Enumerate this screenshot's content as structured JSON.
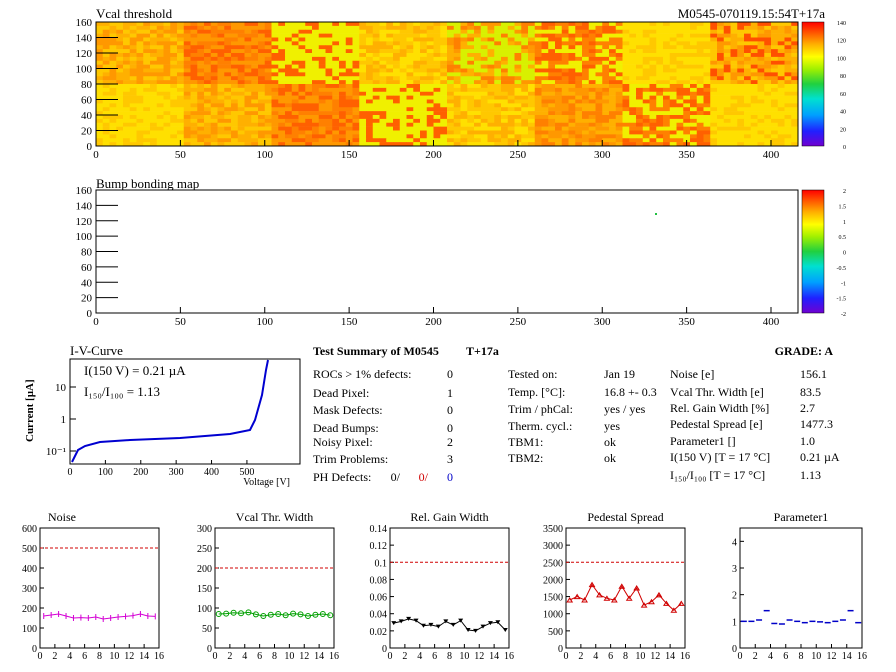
{
  "maps": [
    {
      "title": "Vcal threshold",
      "right_label": "M0545-070119.15:54T+17a",
      "x_ticks": [
        0,
        50,
        100,
        150,
        200,
        250,
        300,
        350,
        400
      ],
      "y_ticks": [
        0,
        20,
        40,
        60,
        80,
        100,
        120,
        140,
        160
      ],
      "xlim": [
        0,
        416
      ],
      "ylim": [
        0,
        160
      ],
      "palette_ticks": [
        0,
        20,
        40,
        60,
        80,
        100,
        120,
        140
      ],
      "palette_range": [
        0,
        140
      ]
    },
    {
      "title": "Bump bonding map",
      "x_ticks": [
        0,
        50,
        100,
        150,
        200,
        250,
        300,
        350,
        400
      ],
      "y_ticks": [
        0,
        20,
        40,
        60,
        80,
        100,
        120,
        140,
        160
      ],
      "xlim": [
        0,
        416
      ],
      "ylim": [
        0,
        160
      ],
      "palette_ticks": [
        -2,
        -1.5,
        -1,
        -0.5,
        0,
        0.5,
        1,
        1.5,
        2
      ],
      "palette_range": [
        -2,
        2
      ]
    }
  ],
  "iv_curve": {
    "title": "I-V-Curve",
    "ylabel": "Current [µA]",
    "xlabel": "Voltage [V]",
    "x_ticks": [
      0,
      100,
      200,
      300,
      400,
      500
    ],
    "y_ticks": [
      "10⁻¹",
      "1",
      "10"
    ],
    "annotation1": "I(150 V) = 0.21 µA",
    "annotation2": "I₁₅₀/I₁₀₀ =  1.13"
  },
  "summary": {
    "title": "Test Summary of M0545",
    "tag": "T+17a",
    "grade_label": "GRADE:  A",
    "col1": [
      {
        "label": "ROCs > 1% defects:",
        "value": "0"
      },
      {
        "label": "Dead Pixel:",
        "value": "1"
      },
      {
        "label": "Mask Defects:",
        "value": "0"
      },
      {
        "label": "Dead Bumps:",
        "value": "0"
      },
      {
        "label": "Noisy Pixel:",
        "value": "2"
      },
      {
        "label": "Trim Problems:",
        "value": "3"
      }
    ],
    "ph_defects": {
      "label": "PH Defects:",
      "v1": "0/",
      "v2": "0/",
      "v3": "0"
    },
    "col2": [
      {
        "label": "Tested on:",
        "value": "Jan 19"
      },
      {
        "label": "Temp. [°C]:",
        "value": "16.8 +- 0.3"
      },
      {
        "label": "Trim / phCal:",
        "value": "yes / yes"
      },
      {
        "label": "Therm. cycl.:",
        "value": "yes"
      },
      {
        "label": "TBM1:",
        "value": "ok"
      },
      {
        "label": "TBM2:",
        "value": "ok"
      }
    ],
    "col3": [
      {
        "label": "Noise [e]",
        "value": "156.1"
      },
      {
        "label": "Vcal Thr. Width [e]",
        "value": "83.5"
      },
      {
        "label": "Rel. Gain Width [%]",
        "value": "2.7"
      },
      {
        "label": "Pedestal Spread [e]",
        "value": "1477.3"
      },
      {
        "label": "Parameter1 []",
        "value": "1.0"
      },
      {
        "label": "I(150 V) [T = 17 °C]",
        "value": "0.21 µA"
      },
      {
        "label": "I₁₅₀/I₁₀₀  [T = 17 °C]",
        "value": "1.13"
      }
    ]
  },
  "chart_data": [
    {
      "type": "line",
      "title": "Noise",
      "x": [
        0,
        1,
        2,
        3,
        4,
        5,
        6,
        7,
        8,
        9,
        10,
        11,
        12,
        13,
        14,
        15
      ],
      "values": [
        160,
        165,
        170,
        160,
        150,
        152,
        150,
        155,
        145,
        150,
        155,
        158,
        162,
        170,
        160,
        158
      ],
      "ylim": [
        0,
        600
      ],
      "y_ticks": [
        0,
        100,
        200,
        300,
        400,
        500,
        600
      ],
      "x_ticks": [
        0,
        2,
        4,
        6,
        8,
        10,
        12,
        14,
        16
      ],
      "reference": 500,
      "color": "#d400d4",
      "marker": "none"
    },
    {
      "type": "line",
      "title": "Vcal Thr. Width",
      "x": [
        0,
        1,
        2,
        3,
        4,
        5,
        6,
        7,
        8,
        9,
        10,
        11,
        12,
        13,
        14,
        15
      ],
      "values": [
        85,
        86,
        88,
        87,
        89,
        84,
        80,
        83,
        85,
        82,
        86,
        84,
        80,
        83,
        85,
        82
      ],
      "ylim": [
        0,
        300
      ],
      "y_ticks": [
        0,
        50,
        100,
        150,
        200,
        250,
        300
      ],
      "x_ticks": [
        0,
        2,
        4,
        6,
        8,
        10,
        12,
        14,
        16
      ],
      "reference": 200,
      "color": "#00a000",
      "marker": "circle"
    },
    {
      "type": "line",
      "title": "Rel. Gain Width",
      "x": [
        0,
        1,
        2,
        3,
        4,
        5,
        6,
        7,
        8,
        9,
        10,
        11,
        12,
        13,
        14,
        15
      ],
      "values": [
        0.029,
        0.031,
        0.034,
        0.032,
        0.026,
        0.027,
        0.025,
        0.031,
        0.027,
        0.032,
        0.021,
        0.02,
        0.025,
        0.029,
        0.03,
        0.021
      ],
      "ylim": [
        0,
        0.14
      ],
      "y_ticks": [
        0,
        0.02,
        0.04,
        0.06,
        0.08,
        0.1,
        0.12,
        0.14
      ],
      "x_ticks": [
        0,
        2,
        4,
        6,
        8,
        10,
        12,
        14,
        16
      ],
      "reference": 0.1,
      "color": "#000000",
      "marker": "triangle-down"
    },
    {
      "type": "line",
      "title": "Pedestal Spread",
      "x": [
        0,
        1,
        2,
        3,
        4,
        5,
        6,
        7,
        8,
        9,
        10,
        11,
        12,
        13,
        14,
        15
      ],
      "values": [
        1400,
        1500,
        1400,
        1850,
        1550,
        1450,
        1400,
        1800,
        1450,
        1750,
        1250,
        1350,
        1550,
        1300,
        1100,
        1300
      ],
      "ylim": [
        0,
        3500
      ],
      "y_ticks": [
        0,
        500,
        1000,
        1500,
        2000,
        2500,
        3000,
        3500
      ],
      "x_ticks": [
        0,
        2,
        4,
        6,
        8,
        10,
        12,
        14,
        16
      ],
      "reference": 2500,
      "color": "#d00000",
      "marker": "triangle-up"
    },
    {
      "type": "scatter",
      "title": "Parameter1",
      "x": [
        0,
        1,
        2,
        3,
        4,
        5,
        6,
        7,
        8,
        9,
        10,
        11,
        12,
        13,
        14,
        15
      ],
      "values": [
        1.0,
        1.0,
        1.05,
        1.4,
        0.92,
        0.9,
        1.05,
        1.0,
        0.95,
        1.0,
        0.98,
        0.95,
        1.0,
        1.05,
        1.4,
        0.95
      ],
      "ylim": [
        0,
        4.5
      ],
      "y_ticks": [
        0,
        1,
        2,
        3,
        4
      ],
      "x_ticks": [
        0,
        2,
        4,
        6,
        8,
        10,
        12,
        14,
        16
      ],
      "color": "#0000c8",
      "marker": "hbar"
    }
  ]
}
